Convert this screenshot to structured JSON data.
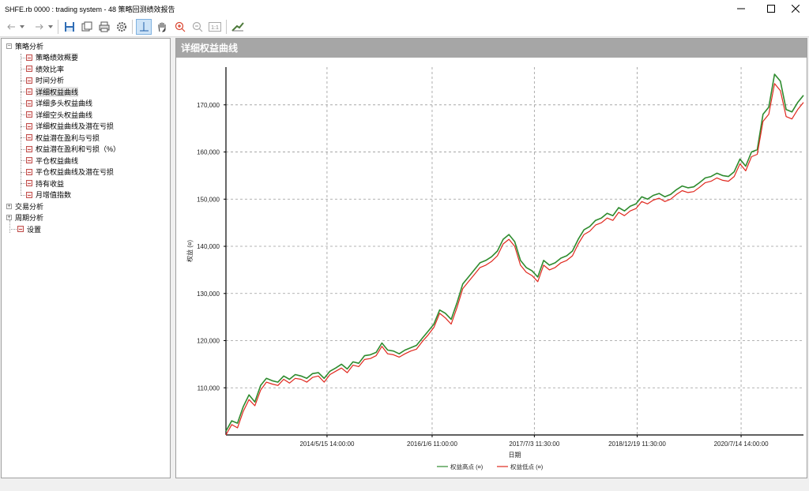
{
  "window": {
    "title": "SHFE.rb 0000 : trading system - 48 策略回测绩效报告",
    "controls": [
      "minimize",
      "maximize",
      "close"
    ]
  },
  "toolbar": {
    "buttons": [
      {
        "name": "back-icon",
        "glyph": "⇠"
      },
      {
        "name": "back-dropdown-icon",
        "glyph": "▾"
      },
      {
        "name": "forward-icon",
        "glyph": "⇢"
      },
      {
        "name": "forward-dropdown-icon",
        "glyph": "▾"
      },
      {
        "name": "save-icon"
      },
      {
        "name": "export-icon"
      },
      {
        "name": "print-icon"
      },
      {
        "name": "settings-icon"
      },
      {
        "name": "crosshair-icon",
        "active": true
      },
      {
        "name": "pan-hand-icon"
      },
      {
        "name": "zoom-in-icon"
      },
      {
        "name": "zoom-out-icon"
      },
      {
        "name": "reset-zoom-icon",
        "label": "1:1"
      },
      {
        "name": "chart-style-icon"
      }
    ]
  },
  "tree": {
    "nodes": [
      {
        "label": "策略分析",
        "level": 0,
        "expander": "−",
        "icon": false
      },
      {
        "label": "策略绩效概要",
        "level": 1,
        "icon": true
      },
      {
        "label": "绩效比率",
        "level": 1,
        "icon": true
      },
      {
        "label": "时间分析",
        "level": 1,
        "icon": true
      },
      {
        "label": "详细权益曲线",
        "level": 1,
        "icon": true,
        "selected": true
      },
      {
        "label": "详细多头权益曲线",
        "level": 1,
        "icon": true
      },
      {
        "label": "详细空头权益曲线",
        "level": 1,
        "icon": true
      },
      {
        "label": "详细权益曲线及潜在亏损",
        "level": 1,
        "icon": true
      },
      {
        "label": "权益潜在盈利与亏损",
        "level": 1,
        "icon": true
      },
      {
        "label": "权益潜在盈利和亏损（%）",
        "level": 1,
        "icon": true
      },
      {
        "label": "平仓权益曲线",
        "level": 1,
        "icon": true
      },
      {
        "label": "平仓权益曲线及潜在亏损",
        "level": 1,
        "icon": true
      },
      {
        "label": "持有收益",
        "level": 1,
        "icon": true
      },
      {
        "label": "月增值指数",
        "level": 1,
        "icon": true
      },
      {
        "label": "交易分析",
        "level": 0,
        "expander": "+",
        "icon": false
      },
      {
        "label": "周期分析",
        "level": 0,
        "expander": "+",
        "icon": false
      },
      {
        "label": "设置",
        "level": 0,
        "icon": true
      }
    ]
  },
  "panel": {
    "header": "详细权益曲线"
  },
  "chart_data": {
    "type": "line",
    "xlabel": "日期",
    "ylabel": "权益 (¤)",
    "ylim": [
      100000,
      178000
    ],
    "yticks": [
      110000,
      120000,
      130000,
      140000,
      150000,
      160000,
      170000
    ],
    "ytick_labels": [
      "110,000",
      "120,000",
      "130,000",
      "140,000",
      "150,000",
      "160,000",
      "170,000"
    ],
    "xlim": [
      0,
      100
    ],
    "xticks": [
      17.5,
      35.7,
      53.4,
      71.2,
      89.2
    ],
    "xtick_labels": [
      "2014/5/15 14:00:00",
      "2016/1/6 11:00:00",
      "2017/7/3 11:30:00",
      "2018/12/19 11:30:00",
      "2020/7/14 14:00:00"
    ],
    "grid": true,
    "legend_position": "bottom-center",
    "series": [
      {
        "name": "权益高点 (¤)",
        "color": "#2e8b2e",
        "x": [
          0,
          1,
          2,
          3,
          4,
          5,
          6,
          7,
          8,
          9,
          10,
          11,
          12,
          13,
          14,
          15,
          16,
          17,
          18,
          19,
          20,
          21,
          22,
          23,
          24,
          25,
          26,
          27,
          28,
          29,
          30,
          31,
          32,
          33,
          34,
          35,
          36,
          37,
          38,
          39,
          40,
          41,
          42,
          43,
          44,
          45,
          46,
          47,
          48,
          49,
          50,
          51,
          52,
          53,
          54,
          55,
          56,
          57,
          58,
          59,
          60,
          61,
          62,
          63,
          64,
          65,
          66,
          67,
          68,
          69,
          70,
          71,
          72,
          73,
          74,
          75,
          76,
          77,
          78,
          79,
          80,
          81,
          82,
          83,
          84,
          85,
          86,
          87,
          88,
          89,
          90,
          91,
          92,
          93,
          94,
          95,
          96,
          97,
          98,
          99,
          100
        ],
        "values": [
          100800,
          103000,
          102500,
          106000,
          108500,
          107000,
          110500,
          112000,
          111500,
          111200,
          112500,
          111800,
          112800,
          112500,
          112000,
          113000,
          113200,
          112000,
          113500,
          114200,
          115000,
          114000,
          115500,
          115200,
          116800,
          117000,
          117500,
          119500,
          118000,
          117800,
          117200,
          118000,
          118500,
          119000,
          120500,
          122000,
          123500,
          126500,
          125800,
          124500,
          128000,
          132000,
          133500,
          135000,
          136500,
          137000,
          137800,
          139000,
          141500,
          142500,
          141000,
          137000,
          135500,
          134800,
          133500,
          137000,
          136000,
          136500,
          137500,
          138000,
          139000,
          141500,
          143500,
          144200,
          145500,
          146000,
          147000,
          146500,
          148200,
          147500,
          148500,
          149000,
          150500,
          150000,
          150800,
          151200,
          150500,
          151000,
          152000,
          152800,
          152400,
          152600,
          153500,
          154500,
          154800,
          155500,
          155000,
          154800,
          155800,
          158500,
          157000,
          160000,
          160500,
          168000,
          169500,
          176500,
          175000,
          169000,
          168500,
          170500,
          172000
        ]
      },
      {
        "name": "权益低点 (¤)",
        "color": "#e0281e",
        "x": [
          0,
          1,
          2,
          3,
          4,
          5,
          6,
          7,
          8,
          9,
          10,
          11,
          12,
          13,
          14,
          15,
          16,
          17,
          18,
          19,
          20,
          21,
          22,
          23,
          24,
          25,
          26,
          27,
          28,
          29,
          30,
          31,
          32,
          33,
          34,
          35,
          36,
          37,
          38,
          39,
          40,
          41,
          42,
          43,
          44,
          45,
          46,
          47,
          48,
          49,
          50,
          51,
          52,
          53,
          54,
          55,
          56,
          57,
          58,
          59,
          60,
          61,
          62,
          63,
          64,
          65,
          66,
          67,
          68,
          69,
          70,
          71,
          72,
          73,
          74,
          75,
          76,
          77,
          78,
          79,
          80,
          81,
          82,
          83,
          84,
          85,
          86,
          87,
          88,
          89,
          90,
          91,
          92,
          93,
          94,
          95,
          96,
          97,
          98,
          99,
          100
        ],
        "values": [
          100000,
          102200,
          101500,
          105000,
          107500,
          106200,
          109500,
          111200,
          110800,
          110500,
          111800,
          111000,
          112000,
          111800,
          111200,
          112200,
          112500,
          111200,
          112800,
          113500,
          114200,
          113200,
          114800,
          114500,
          116000,
          116200,
          116800,
          118800,
          117200,
          117000,
          116500,
          117200,
          117800,
          118200,
          119800,
          121200,
          122800,
          125800,
          124800,
          123500,
          127000,
          131000,
          132500,
          134000,
          135500,
          136000,
          136800,
          138000,
          140500,
          141500,
          140000,
          136000,
          134500,
          133800,
          132500,
          136000,
          135000,
          135500,
          136500,
          137000,
          138000,
          140500,
          142500,
          143200,
          144500,
          145000,
          146000,
          145500,
          147200,
          146500,
          147500,
          148000,
          149500,
          149000,
          149800,
          150200,
          149500,
          150000,
          151000,
          151800,
          151400,
          151600,
          152500,
          153500,
          153800,
          154500,
          154000,
          153800,
          154800,
          157500,
          156000,
          159000,
          159500,
          166500,
          168000,
          174500,
          173000,
          167500,
          167000,
          169000,
          170500
        ]
      }
    ]
  },
  "colors": {
    "panel_header_bg": "#a6a6a6",
    "high_series": "#2e8b2e",
    "low_series": "#e0281e",
    "active_tool_bg": "#cde3f7"
  }
}
